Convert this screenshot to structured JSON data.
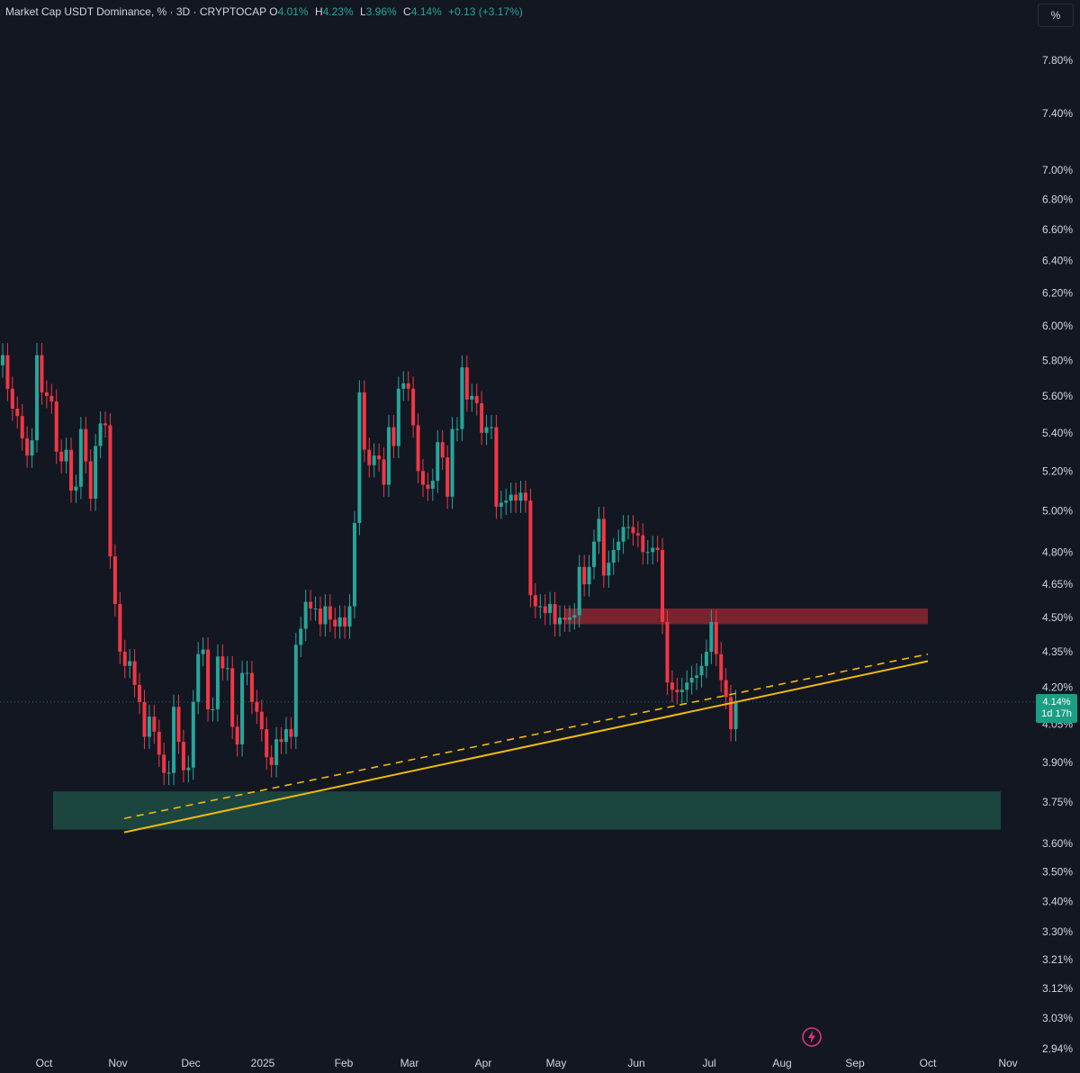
{
  "legend": {
    "title": "Market Cap USDT Dominance, % · 3D · CRYPTOCAP",
    "o_label": "O",
    "o_value": "4.01%",
    "h_label": "H",
    "h_value": "4.23%",
    "l_label": "L",
    "l_value": "3.96%",
    "c_label": "C",
    "c_value": "4.14%",
    "change": "+0.13 (+3.17%)"
  },
  "scale_button": "%",
  "price_tag": {
    "value": "4.14%",
    "countdown": "1d 17h"
  },
  "icons": {
    "scale": "percent-icon",
    "snapshot": "lightning-icon"
  },
  "colors": {
    "background": "#131722",
    "up": "#26a69a",
    "down": "#f23645",
    "trendline": "#f0b90b",
    "support_zone": "#1e4d45",
    "resistance_zone": "#8b2630"
  },
  "chart_data": {
    "type": "candlestick",
    "title": "Market Cap USDT Dominance, % · 3D · CRYPTOCAP",
    "scale": "log",
    "ylim": [
      2.94,
      8.1
    ],
    "y_ticks": [
      "7.80%",
      "7.40%",
      "7.00%",
      "6.80%",
      "6.60%",
      "6.40%",
      "6.20%",
      "6.00%",
      "5.80%",
      "5.60%",
      "5.40%",
      "5.20%",
      "5.00%",
      "4.80%",
      "4.65%",
      "4.50%",
      "4.35%",
      "4.20%",
      "4.05%",
      "3.90%",
      "3.75%",
      "3.60%",
      "3.50%",
      "3.40%",
      "3.30%",
      "3.21%",
      "3.12%",
      "3.03%",
      "2.94%"
    ],
    "x_ticks": [
      "Oct",
      "Nov",
      "Dec",
      "2025",
      "Feb",
      "Mar",
      "Apr",
      "May",
      "Jun",
      "Jul",
      "Aug",
      "Sep",
      "Oct",
      "Nov"
    ],
    "closes": [
      5.83,
      5.64,
      5.53,
      5.49,
      5.37,
      5.28,
      5.36,
      5.83,
      5.62,
      5.6,
      5.57,
      5.3,
      5.25,
      5.31,
      5.1,
      5.12,
      5.42,
      5.25,
      5.06,
      5.33,
      5.45,
      5.44,
      4.78,
      4.56,
      4.35,
      4.29,
      4.31,
      4.21,
      4.14,
      4.0,
      4.08,
      4.02,
      3.93,
      3.86,
      3.86,
      4.12,
      3.98,
      3.87,
      3.88,
      4.14,
      4.34,
      4.36,
      4.11,
      4.11,
      4.33,
      4.28,
      4.28,
      4.04,
      3.97,
      4.26,
      4.26,
      4.14,
      4.1,
      4.03,
      3.92,
      3.89,
      3.99,
      3.98,
      4.03,
      4.0,
      4.38,
      4.45,
      4.57,
      4.54,
      4.54,
      4.47,
      4.55,
      4.49,
      4.46,
      4.5,
      4.46,
      4.55,
      4.94,
      5.62,
      5.31,
      5.23,
      5.28,
      5.26,
      5.13,
      5.43,
      5.33,
      5.64,
      5.67,
      5.64,
      5.44,
      5.2,
      5.13,
      5.11,
      5.15,
      5.35,
      5.27,
      5.07,
      5.42,
      5.42,
      5.76,
      5.58,
      5.6,
      5.56,
      5.4,
      5.43,
      5.43,
      5.02,
      5.04,
      5.05,
      5.08,
      5.05,
      5.09,
      5.05,
      4.6,
      4.55,
      4.55,
      4.52,
      4.56,
      4.47,
      4.5,
      4.49,
      4.5,
      4.51,
      4.73,
      4.65,
      4.73,
      4.85,
      4.96,
      4.69,
      4.75,
      4.81,
      4.85,
      4.92,
      4.92,
      4.89,
      4.88,
      4.8,
      4.8,
      4.82,
      4.81,
      4.48,
      4.22,
      4.19,
      4.18,
      4.19,
      4.22,
      4.24,
      4.25,
      4.29,
      4.35,
      4.48,
      4.34,
      4.23,
      4.16,
      4.03,
      4.14
    ],
    "annotations": [
      {
        "type": "rising-trendline",
        "style": "solid",
        "from": [
          "2024-11-10",
          3.64
        ],
        "to": [
          "2025-10-01",
          4.31
        ]
      },
      {
        "type": "rising-trendline",
        "style": "dashed",
        "from": [
          "2024-11-10",
          3.69
        ],
        "to": [
          "2025-10-01",
          4.34
        ]
      },
      {
        "type": "support-zone",
        "from_price": 3.65,
        "to_price": 3.79
      },
      {
        "type": "resistance-zone",
        "from_price": 4.47,
        "to_price": 4.54
      }
    ]
  }
}
